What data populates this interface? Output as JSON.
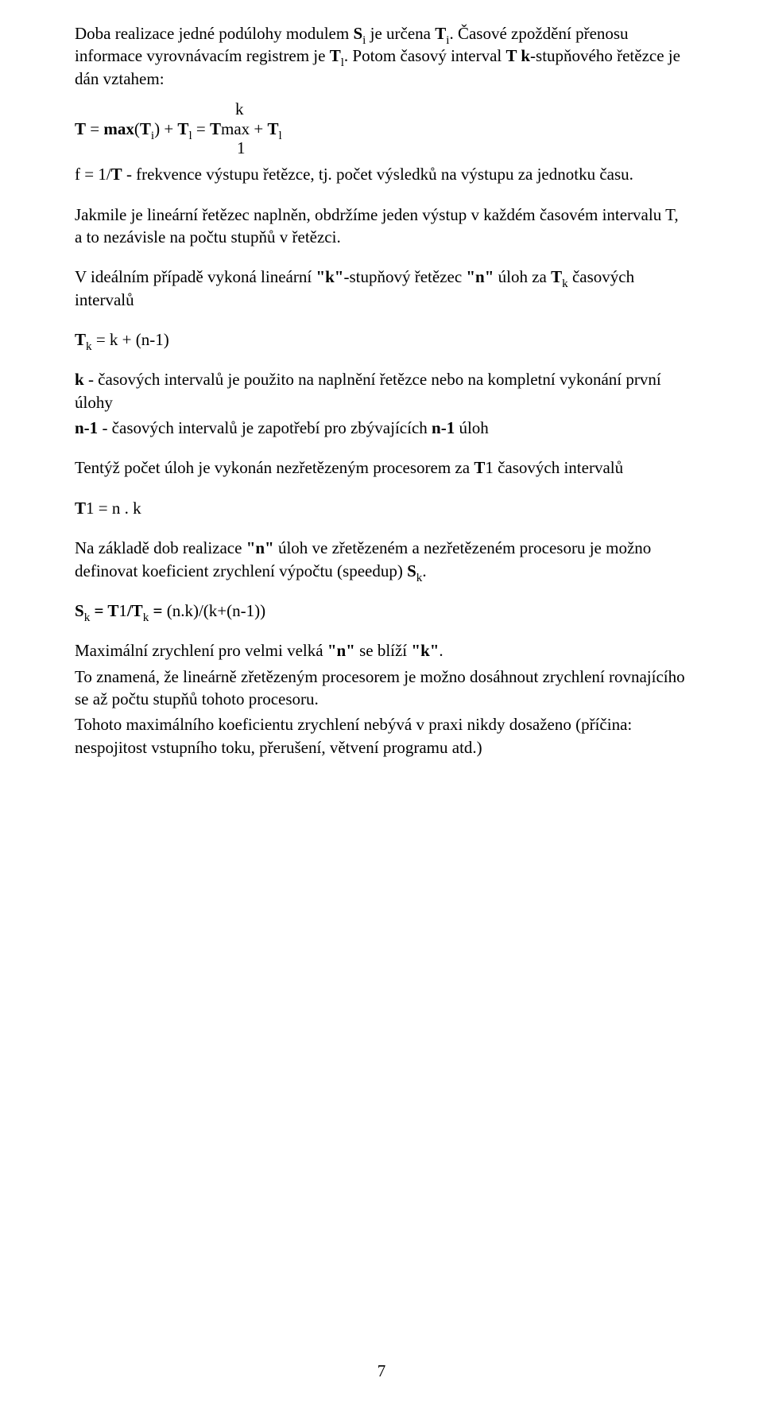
{
  "p1_part1": "Doba realizace jedné podúlohy modulem ",
  "p1_b1": "S",
  "p1_sub1": "i",
  "p1_part2": " je určena ",
  "p1_b2": "T",
  "p1_sub2": "i",
  "p1_part3": ". Časové zpoždění přenosu informace vyrovnávacím registrem je  ",
  "p1_b3": "T",
  "p1_sub3": "l",
  "p1_part4": ". Potom časový interval ",
  "p1_b4": "T k",
  "p1_part5": "-stupňového řetězce je dán  vztahem:",
  "formula_top": "k",
  "formula_b1": "T",
  "formula_t1": " = ",
  "formula_b2": "max",
  "formula_t2": "(",
  "formula_b3": "T",
  "formula_sub1": "i",
  "formula_t3": ") + ",
  "formula_b4": "T",
  "formula_sub2": "l",
  "formula_t4": " = ",
  "formula_b5": "T",
  "formula_t5": "max + ",
  "formula_b6": "T",
  "formula_sub3": "l",
  "formula_bottom": "1",
  "p2_t1": " f = 1/",
  "p2_b1": "T",
  "p2_t2": " - frekvence výstupu řetězce, tj. počet  výsledků na výstupu za jednotku času.",
  "p3": "Jakmile je lineární řetězec naplněn, obdržíme jeden výstup  v každém časovém intervalu T, a to nezávisle na počtu stupňů  v řetězci.",
  "p4_t1": "V ideálním případě vykoná lineární ",
  "p4_b1": "\"k\"",
  "p4_t2": "-stupňový řetězec ",
  "p4_b2": "\"n\"",
  "p4_t3": "  úloh za ",
  "p4_b3": "T",
  "p4_sub1": "k",
  "p4_t4": " časových intervalů",
  "p5_b1": "T",
  "p5_sub1": "k",
  "p5_t1": " = k + (n-1)",
  "p6a_b1": "k",
  "p6a_t1": " - časových intervalů je použito na naplnění  řetězce nebo na kompletní vykonání první úlohy",
  "p6b_b1": "n-1",
  "p6b_t1": " - časových intervalů je zapotřebí pro  zbývajících ",
  "p6b_b2": "n-1",
  "p6b_t2": " úloh",
  "p7_t1": "Tentýž počet úloh je vykonán nezřetězeným procesorem za ",
  "p7_b1": "T",
  "p7_t2": "1  časových intervalů",
  "p8_b1": "T",
  "p8_t1": "1 = n . k",
  "p9_t1": "Na základě dob realizace ",
  "p9_b1": "\"n\"",
  "p9_t2": " úloh ve zřetězeném  a nezřetězeném procesoru je možno definovat koeficient  zrychlení výpočtu (speedup) ",
  "p9_b2": "S",
  "p9_sub1": "k",
  "p9_t3": ".",
  "p10_b1": "S",
  "p10_sub1": "k",
  "p10_b2": " = T",
  "p10_t1": "1",
  "p10_b3": "/T",
  "p10_sub2": "k",
  "p10_b4": " = ",
  "p10_t2": "(n.k)/(k+(n-1))",
  "p11a_t1": "Maximální zrychlení pro velmi velká ",
  "p11a_b1": "\"n\"",
  "p11a_t2": " se blíží ",
  "p11a_b2": "\"k\"",
  "p11a_t3": ".",
  "p11b": "To znamená, že lineárně zřetězeným procesorem je možno  dosáhnout zrychlení rovnajícího se až počtu stupňů tohoto  procesoru.",
  "p11c": "Tohoto maximálního koeficientu zrychlení nebývá v praxi  nikdy dosaženo (příčina: nespojitost vstupního toku,  přerušení, větvení programu atd.)",
  "pagenum": "7"
}
